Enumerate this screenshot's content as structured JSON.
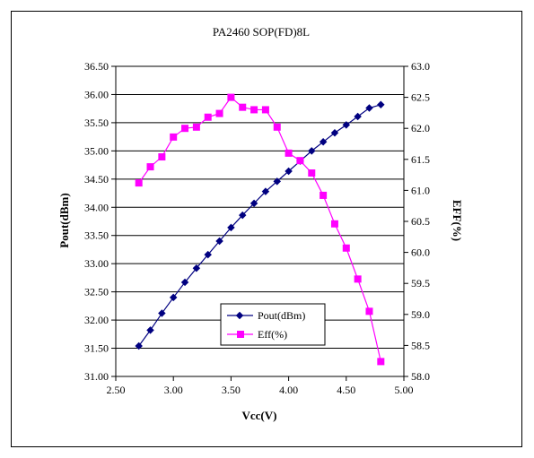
{
  "chart_data": {
    "type": "line",
    "title": "PA2460 SOP(FD)8L",
    "xlabel": "Vcc(V)",
    "ylabel": "Pout(dBm)",
    "y2label": "EFF(%)",
    "xlim": [
      2.5,
      5.0
    ],
    "ylim": [
      31.0,
      36.5
    ],
    "y2lim": [
      58.0,
      63.0
    ],
    "x_ticks": [
      "2.50",
      "3.00",
      "3.50",
      "4.00",
      "4.50",
      "5.00"
    ],
    "y_ticks": [
      "31.00",
      "31.50",
      "32.00",
      "32.50",
      "33.00",
      "33.50",
      "34.00",
      "34.50",
      "35.00",
      "35.50",
      "36.00",
      "36.50"
    ],
    "y2_ticks": [
      "58.0",
      "58.5",
      "59.0",
      "59.5",
      "60.0",
      "60.5",
      "61.0",
      "61.5",
      "62.0",
      "62.5",
      "63.0"
    ],
    "grid": "horizontal",
    "legend_position": "center-bottom",
    "x": [
      2.7,
      2.8,
      2.9,
      3.0,
      3.1,
      3.2,
      3.3,
      3.4,
      3.5,
      3.6,
      3.7,
      3.8,
      3.9,
      4.0,
      4.1,
      4.2,
      4.3,
      4.4,
      4.5,
      4.6,
      4.7,
      4.8
    ],
    "series": [
      {
        "name": "Pout(dBm)",
        "axis": "left",
        "color": "#000080",
        "marker": "diamond",
        "values": [
          31.54,
          31.82,
          32.12,
          32.4,
          32.67,
          32.92,
          33.16,
          33.4,
          33.64,
          33.86,
          34.07,
          34.28,
          34.46,
          34.64,
          34.82,
          35.0,
          35.16,
          35.32,
          35.46,
          35.61,
          35.76,
          35.82
        ]
      },
      {
        "name": "Eff(%)",
        "axis": "right",
        "color": "#ff00ff",
        "marker": "square",
        "values": [
          61.12,
          61.38,
          61.54,
          61.86,
          62.0,
          62.02,
          62.18,
          62.24,
          62.5,
          62.34,
          62.3,
          62.3,
          62.02,
          61.6,
          61.48,
          61.28,
          60.92,
          60.46,
          60.07,
          59.57,
          59.05,
          58.24
        ]
      }
    ]
  }
}
